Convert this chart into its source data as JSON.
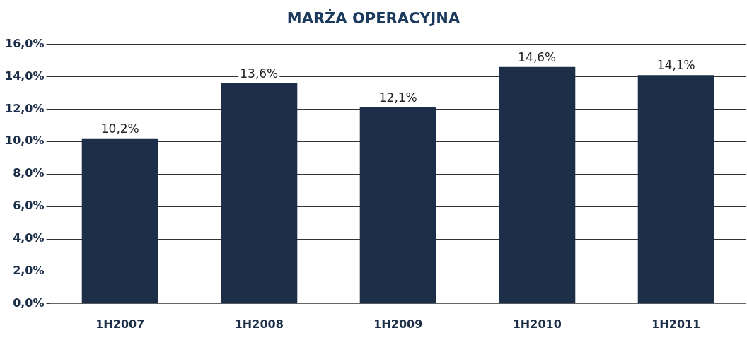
{
  "chart_data": {
    "type": "bar",
    "title": "MARŻA OPERACYJNA",
    "categories": [
      "1H2007",
      "1H2008",
      "1H2009",
      "1H2010",
      "1H2011"
    ],
    "values": [
      10.2,
      13.6,
      12.1,
      14.6,
      14.1
    ],
    "value_labels": [
      "10,2%",
      "13,6%",
      "12,1%",
      "14,6%",
      "14,1%"
    ],
    "color": "#1c2e48",
    "ylim": [
      0,
      16
    ],
    "yticks": [
      {
        "value": 0,
        "label": "0,0%"
      },
      {
        "value": 2,
        "label": "2,0%"
      },
      {
        "value": 4,
        "label": "4,0%"
      },
      {
        "value": 6,
        "label": "6,0%"
      },
      {
        "value": 8,
        "label": "8,0%"
      },
      {
        "value": 10,
        "label": "10,0%"
      },
      {
        "value": 12,
        "label": "12,0%"
      },
      {
        "value": 14,
        "label": "14,0%"
      },
      {
        "value": 16,
        "label": "16,0%"
      }
    ],
    "grid": "y"
  }
}
